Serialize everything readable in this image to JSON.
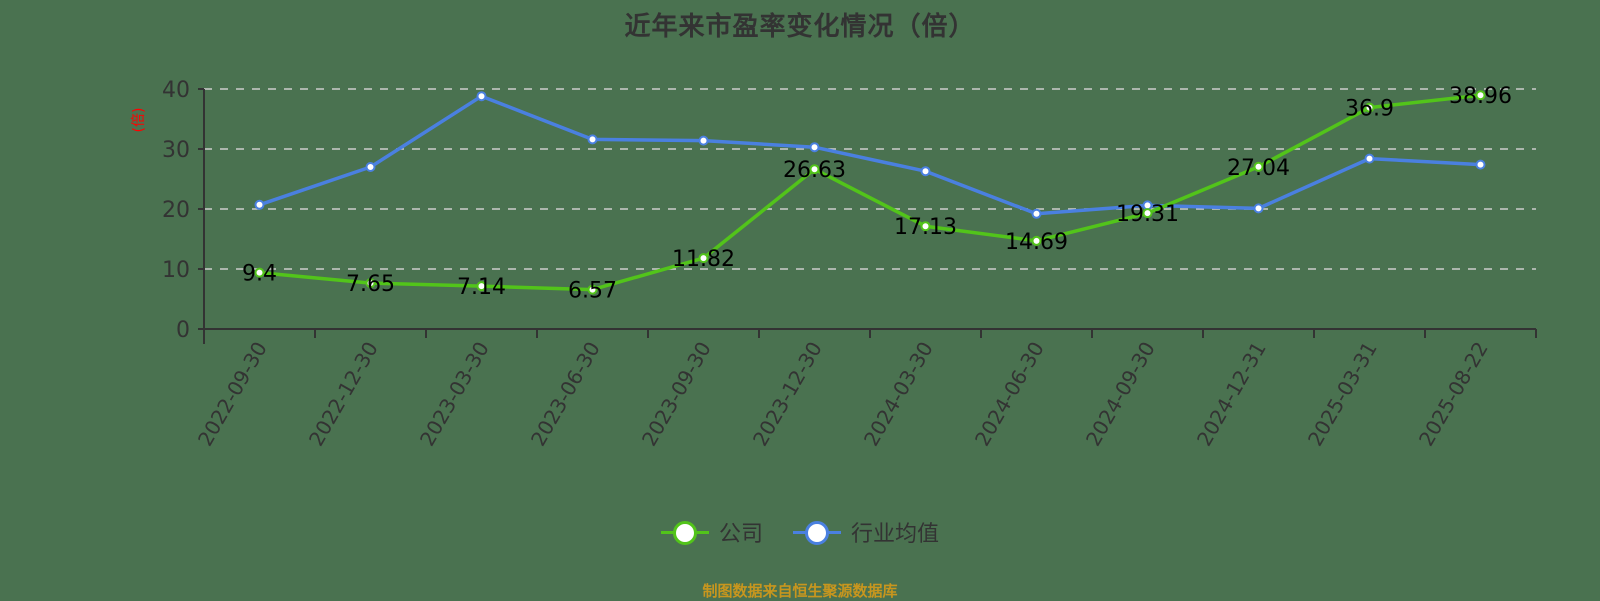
{
  "title": "近年来市盈率变化情况（倍）",
  "y_unit_label": "(倍)",
  "source": "制图数据来自恒生聚源数据库",
  "colors": {
    "company": "#52c41a",
    "industry": "#4a80e0",
    "grid": "#cccccc",
    "axis": "#333333",
    "background": "#4a7250",
    "source": "#c8961e",
    "unit": "#ff0000"
  },
  "legend": [
    {
      "label": "公司",
      "color": "#52c41a"
    },
    {
      "label": "行业均值",
      "color": "#4a80e0"
    }
  ],
  "chart_data": {
    "type": "line",
    "title": "近年来市盈率变化情况（倍）",
    "xlabel": "",
    "ylabel": "(倍)",
    "ylim": [
      0,
      40
    ],
    "yticks": [
      0,
      10,
      20,
      30,
      40
    ],
    "grid": true,
    "legend_position": "bottom",
    "categories": [
      "2022-09-30",
      "2022-12-30",
      "2023-03-30",
      "2023-06-30",
      "2023-09-30",
      "2023-12-30",
      "2024-03-30",
      "2024-06-30",
      "2024-09-30",
      "2024-12-31",
      "2025-03-31",
      "2025-08-22"
    ],
    "series": [
      {
        "name": "公司",
        "values": [
          9.4,
          7.65,
          7.14,
          6.57,
          11.82,
          26.63,
          17.13,
          14.69,
          19.31,
          27.04,
          36.9,
          38.96
        ],
        "labels_shown": true
      },
      {
        "name": "行业均值",
        "values": [
          20.7,
          27.0,
          38.8,
          31.6,
          31.4,
          30.3,
          26.3,
          19.2,
          20.6,
          20.1,
          28.4,
          27.4
        ],
        "labels_shown": false
      }
    ]
  }
}
